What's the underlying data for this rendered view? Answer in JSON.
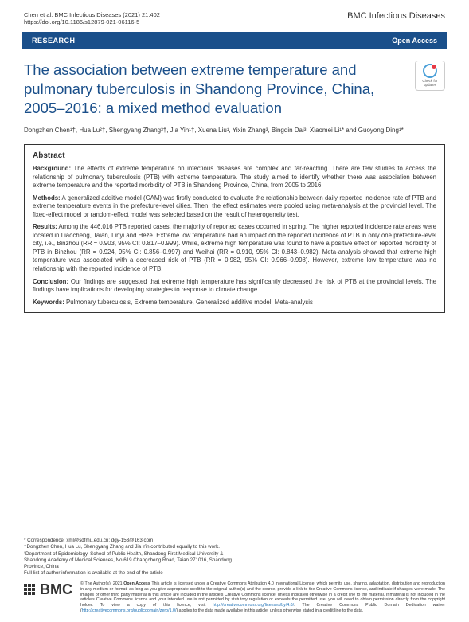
{
  "header": {
    "citation_line1": "Chen et al. BMC Infectious Diseases       (2021) 21:402",
    "citation_line2": "https://doi.org/10.1186/s12879-021-06116-5",
    "journal": "BMC Infectious Diseases"
  },
  "bar": {
    "research": "RESEARCH",
    "open_access": "Open Access"
  },
  "title": "The association between extreme temperature and pulmonary tuberculosis in Shandong Province, China, 2005–2016: a mixed method evaluation",
  "updates_badge": "Check for updates",
  "authors": "Dongzhen Chen¹†, Hua Lu²†, Shengyang Zhang³†, Jia Yin¹†, Xuena Liu¹, Yixin Zhang³, Bingqin Dai³, Xiaomei Li¹* and Guoyong Ding¹*",
  "abstract": {
    "title": "Abstract",
    "background_label": "Background:",
    "background": " The effects of extreme temperature on infectious diseases are complex and far-reaching. There are few studies to access the relationship of pulmonary tuberculosis (PTB) with extreme temperature. The study aimed to identify whether there was association between extreme temperature and the reported morbidity of PTB in Shandong Province, China, from 2005 to 2016.",
    "methods_label": "Methods:",
    "methods": " A generalized additive model (GAM) was firstly conducted to evaluate the relationship between daily reported incidence rate of PTB and extreme temperature events in the prefecture-level cities. Then, the effect estimates were pooled using meta-analysis at the provincial level. The fixed-effect model or random-effect model was selected based on the result of heterogeneity test.",
    "results_label": "Results:",
    "results": " Among the 446,016 PTB reported cases, the majority of reported cases occurred in spring. The higher reported incidence rate areas were located in Liaocheng, Taian, Linyi and Heze. Extreme low temperature had an impact on the reported incidence of PTB in only one prefecture-level city, i.e., Binzhou (RR = 0.903, 95% CI: 0.817–0.999). While, extreme high temperature was found to have a positive effect on reported morbidity of PTB in Binzhou (RR = 0.924, 95% CI: 0.856–0.997) and Weihai (RR = 0.910, 95% CI: 0.843–0.982). Meta-analysis showed that extreme high temperature was associated with a decreased risk of PTB (RR = 0.982, 95% CI: 0.966–0.998). However, extreme low temperature was no relationship with the reported incidence of PTB.",
    "conclusion_label": "Conclusion:",
    "conclusion": " Our findings are suggested that extreme high temperature has significantly decreased the risk of PTB at the provincial levels. The findings have implications for developing strategies to response to climate change.",
    "keywords_label": "Keywords:",
    "keywords": " Pulmonary tuberculosis, Extreme temperature, Generalized additive model, Meta-analysis"
  },
  "footnotes": {
    "correspondence": "* Correspondence: xml@sdfmu.edu.cn; dgy-153@163.com",
    "equal": "†Dongzhen Chen, Hua Lu, Shengyang Zhang and Jia Yin contributed equally to this work.",
    "affiliation": "¹Department of Epidemiology, School of Public Health, Shandong First Medical University & Shandong Academy of Medical Sciences, No.619 Changcheng Road, Taian 271016, Shandong Province, China",
    "author_info": "Full list of author information is available at the end of the article"
  },
  "license": {
    "bmc": "BMC",
    "text_prefix": "© The Author(s). 2021 ",
    "open_access_bold": "Open Access",
    "text_body": " This article is licensed under a Creative Commons Attribution 4.0 International License, which permits use, sharing, adaptation, distribution and reproduction in any medium or format, as long as you give appropriate credit to the original author(s) and the source, provide a link to the Creative Commons licence, and indicate if changes were made. The images or other third party material in this article are included in the article's Creative Commons licence, unless indicated otherwise in a credit line to the material. If material is not included in the article's Creative Commons licence and your intended use is not permitted by statutory regulation or exceeds the permitted use, you will need to obtain permission directly from the copyright holder. To view a copy of this licence, visit ",
    "link1": "http://creativecommons.org/licenses/by/4.0/",
    "text_mid": ". The Creative Commons Public Domain Dedication waiver (",
    "link2": "http://creativecommons.org/publicdomain/zero/1.0/",
    "text_end": ") applies to the data made available in this article, unless otherwise stated in a credit line to the data."
  }
}
